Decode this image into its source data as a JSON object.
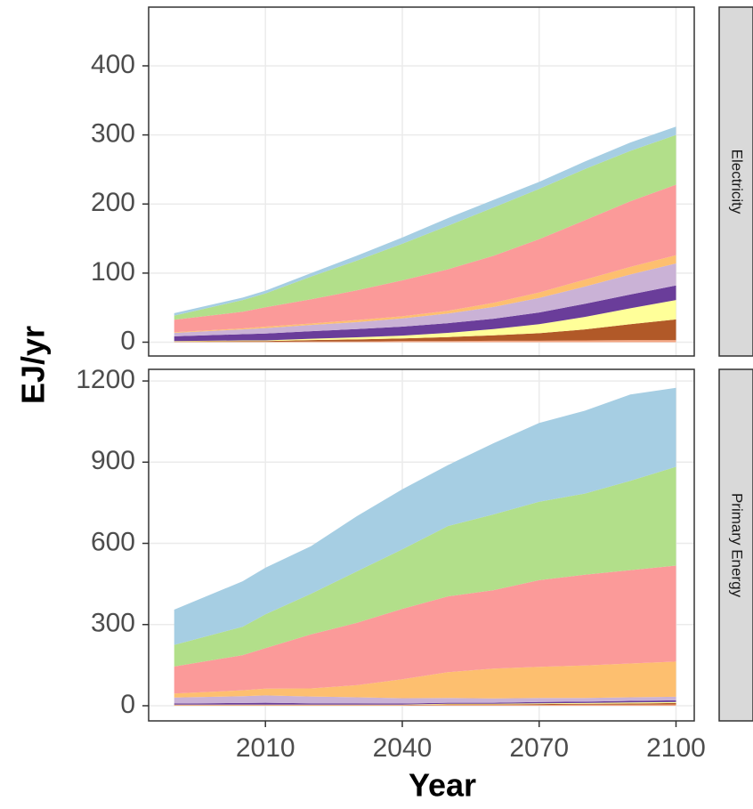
{
  "chart_data": [
    {
      "type": "area",
      "facet": "Electricity",
      "ylabel": "EJ/yr",
      "x": [
        1990,
        2005,
        2010,
        2020,
        2030,
        2040,
        2050,
        2060,
        2070,
        2080,
        2090,
        2100
      ],
      "xlim": [
        1984.4,
        2104
      ],
      "xticks": [
        2010,
        2040,
        2070,
        2100
      ],
      "ylim": [
        -20,
        485
      ],
      "yticks": [
        0,
        100,
        200,
        300,
        400
      ],
      "grid": true,
      "series": [
        {
          "color": "#f4a582",
          "values": [
            0.5,
            0.5,
            0.5,
            1,
            1,
            1.5,
            1.5,
            2,
            2,
            2.5,
            3,
            3
          ]
        },
        {
          "color": "#b15928",
          "values": [
            0.5,
            1,
            1,
            2,
            3,
            4,
            6,
            8,
            11,
            16,
            23,
            30
          ]
        },
        {
          "color": "#ffff99",
          "values": [
            0.5,
            1,
            1,
            2,
            3,
            4,
            6,
            9,
            13,
            18,
            23,
            28
          ]
        },
        {
          "color": "#6a3d9a",
          "values": [
            7,
            9,
            10,
            11,
            12,
            13,
            14,
            15,
            17,
            19,
            20,
            21
          ]
        },
        {
          "color": "#cab2d6",
          "values": [
            5,
            7,
            8,
            9,
            10,
            12,
            14,
            17,
            21,
            25,
            29,
            32
          ]
        },
        {
          "color": "#fdbf6f",
          "values": [
            1,
            1.5,
            2,
            2,
            3,
            3,
            4,
            6,
            8,
            10,
            11,
            12
          ]
        },
        {
          "color": "#fb9a99",
          "values": [
            18,
            24,
            28,
            35,
            43,
            52,
            60,
            68,
            77,
            86,
            95,
            102
          ]
        },
        {
          "color": "#b2df8a",
          "values": [
            6,
            17,
            20,
            33,
            43,
            53,
            63,
            70,
            73,
            74,
            73,
            72
          ]
        },
        {
          "color": "#a6cee3",
          "values": [
            3.5,
            3.5,
            4,
            5,
            7,
            9,
            11,
            11,
            10,
            11,
            12,
            12
          ]
        }
      ]
    },
    {
      "type": "area",
      "facet": "Primary Energy",
      "xlabel": "Year",
      "x": [
        1990,
        2005,
        2010,
        2020,
        2030,
        2040,
        2050,
        2060,
        2070,
        2080,
        2090,
        2100
      ],
      "xlim": [
        1984.4,
        2104
      ],
      "xticks": [
        2010,
        2040,
        2070,
        2100
      ],
      "ylim": [
        -56,
        1243
      ],
      "yticks": [
        0,
        300,
        600,
        900,
        1200
      ],
      "grid": true,
      "series": [
        {
          "color": "#f4a582",
          "values": [
            2,
            2,
            2,
            2,
            2,
            2,
            3,
            3,
            3,
            4,
            4,
            5
          ]
        },
        {
          "color": "#b15928",
          "values": [
            1,
            1,
            1,
            1,
            1,
            1,
            2,
            2,
            3,
            3,
            4,
            5
          ]
        },
        {
          "color": "#ffff99",
          "values": [
            1,
            1,
            1,
            1,
            1,
            1,
            2,
            2,
            3,
            3,
            4,
            4
          ]
        },
        {
          "color": "#6a3d9a",
          "values": [
            4,
            6,
            7,
            5,
            5,
            4,
            4,
            4,
            5,
            5,
            6,
            6
          ]
        },
        {
          "color": "#cab2d6",
          "values": [
            22,
            25,
            27,
            25,
            22,
            20,
            18,
            16,
            15,
            14,
            13,
            13
          ]
        },
        {
          "color": "#fdbf6f",
          "values": [
            15,
            22,
            25,
            30,
            45,
            70,
            95,
            110,
            115,
            120,
            125,
            130
          ]
        },
        {
          "color": "#fb9a99",
          "values": [
            100,
            130,
            150,
            200,
            230,
            260,
            280,
            290,
            320,
            335,
            345,
            355
          ]
        },
        {
          "color": "#b2df8a",
          "values": [
            80,
            105,
            125,
            150,
            190,
            220,
            260,
            280,
            290,
            300,
            330,
            365
          ]
        },
        {
          "color": "#a6cee3",
          "values": [
            130,
            168,
            172,
            176,
            204,
            222,
            225,
            263,
            291,
            306,
            319,
            292
          ]
        }
      ]
    }
  ]
}
